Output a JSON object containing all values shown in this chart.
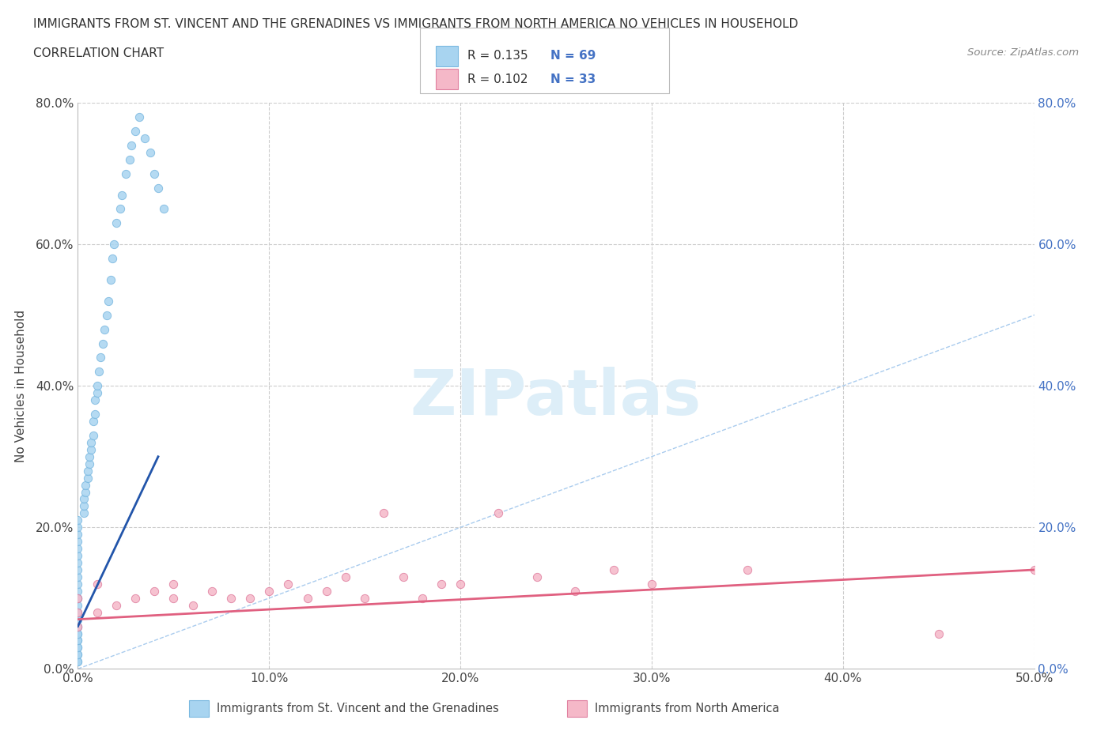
{
  "title_line1": "IMMIGRANTS FROM ST. VINCENT AND THE GRENADINES VS IMMIGRANTS FROM NORTH AMERICA NO VEHICLES IN HOUSEHOLD",
  "title_line2": "CORRELATION CHART",
  "source_text": "Source: ZipAtlas.com",
  "ylabel_label": "No Vehicles in Household",
  "xlim": [
    0.0,
    0.5
  ],
  "ylim": [
    0.0,
    0.8
  ],
  "xtick_labels": [
    "0.0%",
    "10.0%",
    "20.0%",
    "30.0%",
    "40.0%",
    "50.0%"
  ],
  "xtick_values": [
    0.0,
    0.1,
    0.2,
    0.3,
    0.4,
    0.5
  ],
  "ytick_labels": [
    "0.0%",
    "20.0%",
    "40.0%",
    "60.0%",
    "80.0%"
  ],
  "ytick_values": [
    0.0,
    0.2,
    0.4,
    0.6,
    0.8
  ],
  "series1_color": "#a8d4f0",
  "series1_edge": "#7ab8e0",
  "series2_color": "#f5b8c8",
  "series2_edge": "#e080a0",
  "series1_label": "Immigrants from St. Vincent and the Grenadines",
  "series2_label": "Immigrants from North America",
  "series1_R": 0.135,
  "series1_N": 69,
  "series2_R": 0.102,
  "series2_N": 33,
  "legend_R_color": "#4472c4",
  "watermark": "ZIPatlas",
  "watermark_color": "#ddeef8",
  "series1_x": [
    0.0,
    0.0,
    0.0,
    0.0,
    0.0,
    0.0,
    0.0,
    0.0,
    0.0,
    0.0,
    0.0,
    0.0,
    0.0,
    0.0,
    0.0,
    0.0,
    0.0,
    0.0,
    0.0,
    0.0,
    0.0,
    0.0,
    0.0,
    0.0,
    0.0,
    0.0,
    0.0,
    0.0,
    0.0,
    0.0,
    0.003,
    0.003,
    0.003,
    0.004,
    0.004,
    0.005,
    0.005,
    0.006,
    0.006,
    0.007,
    0.007,
    0.008,
    0.008,
    0.009,
    0.009,
    0.01,
    0.01,
    0.011,
    0.012,
    0.013,
    0.014,
    0.015,
    0.016,
    0.017,
    0.018,
    0.019,
    0.02,
    0.022,
    0.023,
    0.025,
    0.027,
    0.028,
    0.03,
    0.032,
    0.035,
    0.038,
    0.04,
    0.042,
    0.045
  ],
  "series1_y": [
    0.01,
    0.01,
    0.02,
    0.02,
    0.03,
    0.03,
    0.04,
    0.04,
    0.05,
    0.05,
    0.06,
    0.06,
    0.07,
    0.07,
    0.08,
    0.08,
    0.09,
    0.1,
    0.1,
    0.11,
    0.12,
    0.13,
    0.14,
    0.15,
    0.16,
    0.17,
    0.18,
    0.19,
    0.2,
    0.21,
    0.22,
    0.23,
    0.24,
    0.25,
    0.26,
    0.27,
    0.28,
    0.29,
    0.3,
    0.31,
    0.32,
    0.33,
    0.35,
    0.36,
    0.38,
    0.39,
    0.4,
    0.42,
    0.44,
    0.46,
    0.48,
    0.5,
    0.52,
    0.55,
    0.58,
    0.6,
    0.63,
    0.65,
    0.67,
    0.7,
    0.72,
    0.74,
    0.76,
    0.78,
    0.75,
    0.73,
    0.7,
    0.68,
    0.65
  ],
  "series2_x": [
    0.0,
    0.0,
    0.0,
    0.01,
    0.01,
    0.02,
    0.03,
    0.04,
    0.05,
    0.05,
    0.06,
    0.07,
    0.08,
    0.09,
    0.1,
    0.11,
    0.12,
    0.13,
    0.14,
    0.15,
    0.16,
    0.17,
    0.18,
    0.19,
    0.2,
    0.22,
    0.24,
    0.26,
    0.28,
    0.3,
    0.35,
    0.45,
    0.5
  ],
  "series2_y": [
    0.06,
    0.08,
    0.1,
    0.08,
    0.12,
    0.09,
    0.1,
    0.11,
    0.1,
    0.12,
    0.09,
    0.11,
    0.1,
    0.1,
    0.11,
    0.12,
    0.1,
    0.11,
    0.13,
    0.1,
    0.22,
    0.13,
    0.1,
    0.12,
    0.12,
    0.22,
    0.13,
    0.11,
    0.14,
    0.12,
    0.14,
    0.05,
    0.14
  ],
  "series1_trend_x": [
    0.0,
    0.042
  ],
  "series1_trend_y": [
    0.06,
    0.3
  ],
  "series2_trend_x": [
    0.0,
    0.5
  ],
  "series2_trend_y": [
    0.07,
    0.14
  ]
}
